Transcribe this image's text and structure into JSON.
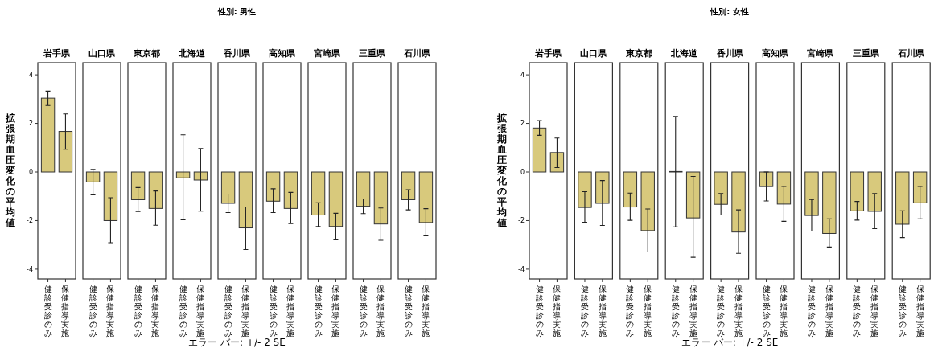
{
  "chart_data": [
    {
      "type": "bar",
      "title": "性別: 男性",
      "ylabel": "拡張期血圧変化の平均値",
      "annotations": [
        "エラー バー: +/- 2 SE"
      ],
      "categories": [
        "岩手県",
        "山口県",
        "東京都",
        "北海道",
        "香川県",
        "高知県",
        "宮崎県",
        "三重県",
        "石川県"
      ],
      "ylim": [
        -4.4,
        4.5
      ],
      "yticks": [
        -4,
        -2,
        0,
        2,
        4
      ],
      "legend": "bottom",
      "series": [
        {
          "name": "健診受診のみ",
          "color": "#d8c97c",
          "values": [
            3.04,
            -0.41,
            -1.14,
            -0.24,
            -1.29,
            -1.2,
            -1.77,
            -1.41,
            -1.14
          ],
          "errors": [
            [
              2.74,
              3.33
            ],
            [
              -0.94,
              0.11
            ],
            [
              -1.63,
              -0.64
            ],
            [
              -1.97,
              1.53
            ],
            [
              -1.67,
              -0.91
            ],
            [
              -1.67,
              -0.69
            ],
            [
              -2.24,
              -1.27
            ],
            [
              -1.71,
              -1.11
            ],
            [
              -1.56,
              -0.73
            ]
          ]
        },
        {
          "name": "保健指導実施",
          "color": "#d8c97c",
          "values": [
            1.67,
            -2.0,
            -1.5,
            -0.33,
            -2.3,
            -1.5,
            -2.24,
            -2.14,
            -2.08
          ],
          "errors": [
            [
              0.94,
              2.39
            ],
            [
              -2.91,
              -1.06
            ],
            [
              -2.19,
              -0.78
            ],
            [
              -1.61,
              0.97
            ],
            [
              -3.19,
              -1.44
            ],
            [
              -2.12,
              -0.84
            ],
            [
              -2.79,
              -1.7
            ],
            [
              -2.81,
              -1.48
            ],
            [
              -2.63,
              -1.51
            ]
          ]
        }
      ]
    },
    {
      "type": "bar",
      "title": "性別: 女性",
      "ylabel": "拡張期血圧変化の平均値",
      "annotations": [
        "エラー バー: +/- 2 SE"
      ],
      "categories": [
        "岩手県",
        "山口県",
        "東京都",
        "北海道",
        "香川県",
        "高知県",
        "宮崎県",
        "三重県",
        "石川県"
      ],
      "ylim": [
        -4.4,
        4.5
      ],
      "yticks": [
        -4,
        -2,
        0,
        2,
        4
      ],
      "legend": "bottom",
      "series": [
        {
          "name": "健診受診のみ",
          "color": "#d8c97c",
          "values": [
            1.81,
            -1.46,
            -1.44,
            0.02,
            -1.33,
            -0.6,
            -1.79,
            -1.6,
            -2.15
          ],
          "errors": [
            [
              1.51,
              2.12
            ],
            [
              -2.07,
              -0.81
            ],
            [
              -1.99,
              -0.87
            ],
            [
              -2.26,
              2.29
            ],
            [
              -1.77,
              -0.89
            ],
            [
              -1.19,
              0.0
            ],
            [
              -2.43,
              -1.13
            ],
            [
              -1.98,
              -1.21
            ],
            [
              -2.7,
              -1.6
            ]
          ]
        },
        {
          "name": "保健指導実施",
          "color": "#d8c97c",
          "values": [
            0.8,
            -1.29,
            -2.41,
            -1.89,
            -2.47,
            -1.32,
            -2.53,
            -1.62,
            -1.27
          ],
          "errors": [
            [
              0.18,
              1.4
            ],
            [
              -2.2,
              -0.35
            ],
            [
              -3.29,
              -1.52
            ],
            [
              -3.51,
              -0.18
            ],
            [
              -3.35,
              -1.56
            ],
            [
              -2.03,
              -0.59
            ],
            [
              -3.09,
              -1.93
            ],
            [
              -2.33,
              -0.89
            ],
            [
              -1.93,
              -0.59
            ]
          ]
        }
      ]
    }
  ]
}
